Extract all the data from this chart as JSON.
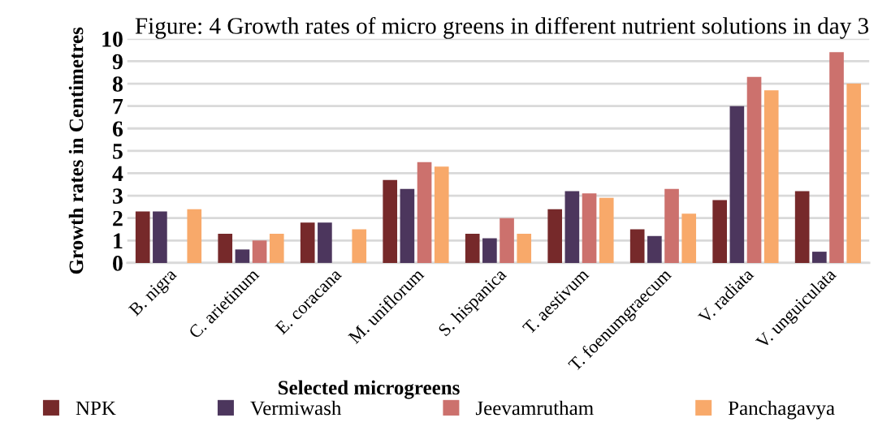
{
  "chart_data": {
    "type": "bar",
    "title": "Figure: 4 Growth rates of micro greens in different nutrient solutions in day 3",
    "xlabel": "Selected microgreens",
    "ylabel": "Growth rates in Centimetres",
    "categories": [
      "B. nigra",
      "C. arietinum",
      "E. coracana",
      "M. uniflorum",
      "S. hispanica",
      "T. aestivum",
      "T. foenumgraecum",
      "V. radiata",
      "V. unguiculata"
    ],
    "series": [
      {
        "name": "NPK",
        "color": "#76292a",
        "values": [
          2.3,
          1.3,
          1.8,
          3.7,
          1.3,
          2.4,
          1.5,
          2.8,
          3.2
        ]
      },
      {
        "name": "Vermiwash",
        "color": "#4c365d",
        "values": [
          2.3,
          0.6,
          1.8,
          3.3,
          1.1,
          3.2,
          1.2,
          7.0,
          0.5
        ]
      },
      {
        "name": "Jeevamrutham",
        "color": "#cc716d",
        "values": [
          null,
          1.0,
          null,
          4.5,
          2.0,
          3.1,
          3.3,
          8.3,
          9.4
        ]
      },
      {
        "name": "Panchagavya",
        "color": "#f8a96a",
        "values": [
          2.4,
          1.3,
          1.5,
          4.3,
          1.3,
          2.9,
          2.2,
          7.7,
          8.0
        ]
      }
    ],
    "ylim": [
      0,
      10
    ],
    "yticks": [
      0,
      1,
      2,
      3,
      4,
      5,
      6,
      7,
      8,
      9,
      10
    ],
    "grid": "y",
    "legend": "bottom"
  }
}
